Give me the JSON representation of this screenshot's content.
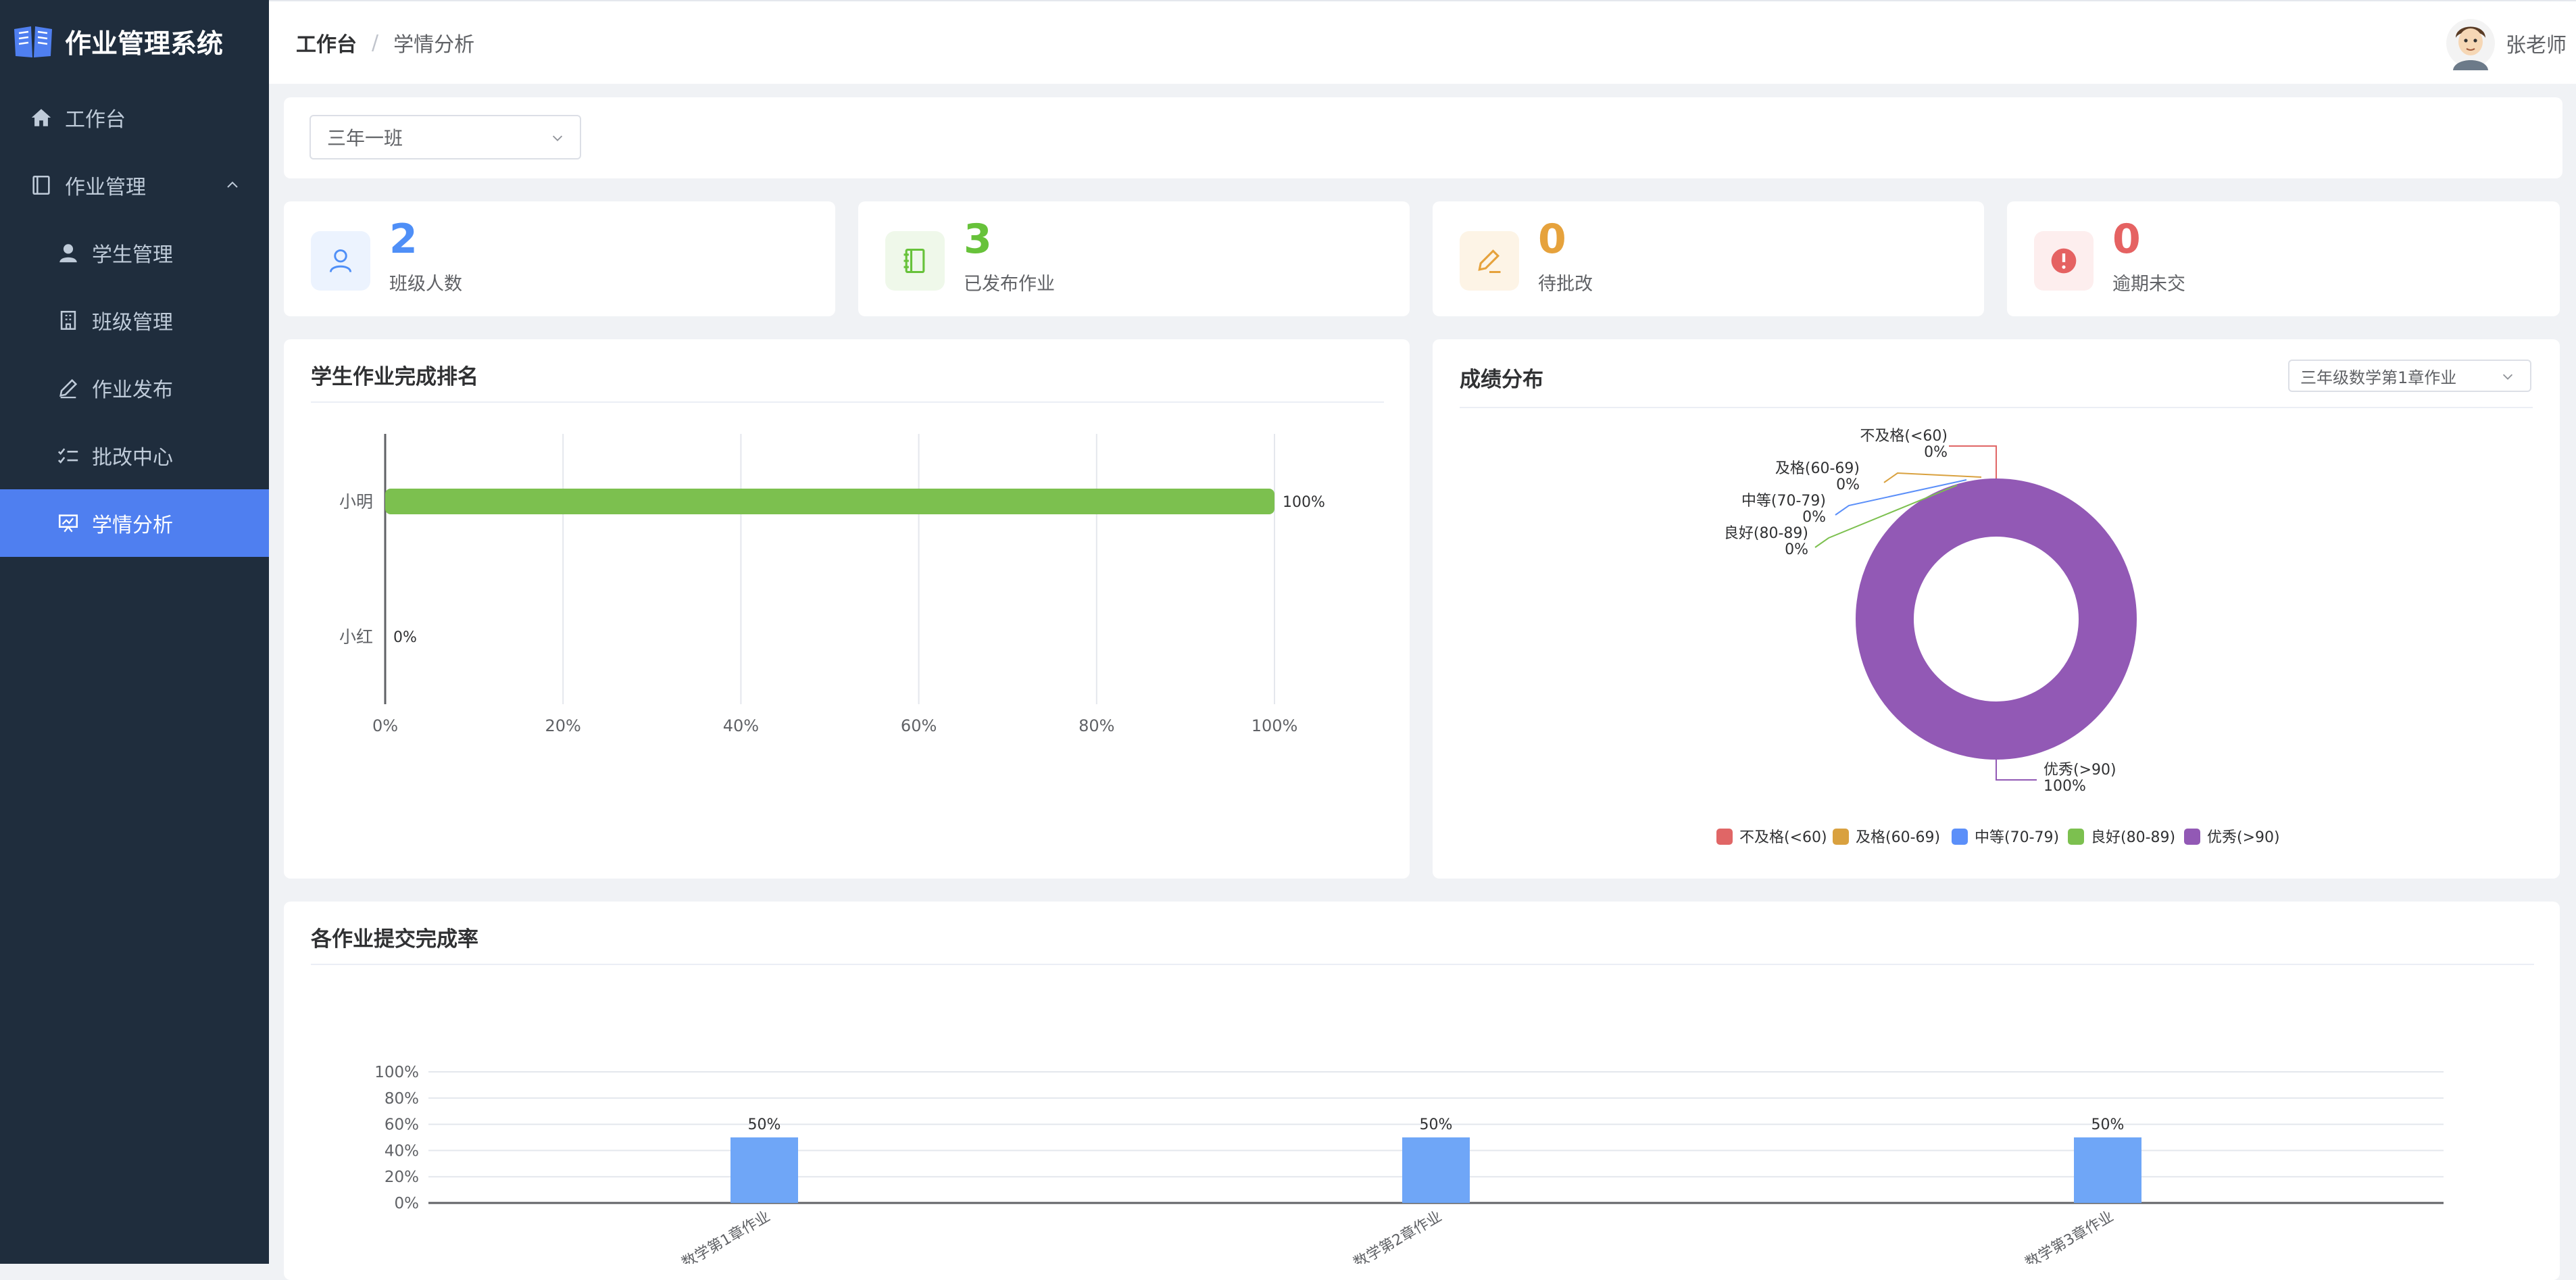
{
  "app": {
    "title": "作业管理系统"
  },
  "sidebar": {
    "items": [
      {
        "label": "工作台",
        "icon": "home-icon"
      },
      {
        "label": "作业管理",
        "icon": "book-icon"
      },
      {
        "label": "学生管理",
        "icon": "user-icon"
      },
      {
        "label": "班级管理",
        "icon": "building-icon"
      },
      {
        "label": "作业发布",
        "icon": "edit-icon"
      },
      {
        "label": "批改中心",
        "icon": "check-list-icon"
      },
      {
        "label": "学情分析",
        "icon": "presentation-icon",
        "active": true
      }
    ]
  },
  "header": {
    "breadcrumb": [
      "工作台",
      "/",
      "学情分析"
    ],
    "user_name": "张老师"
  },
  "filter": {
    "class_value": "三年一班"
  },
  "stats": [
    {
      "value": "2",
      "label": "班级人数",
      "color": "#4f8ff7",
      "bg": "#ecf3fe",
      "icon": "user-icon"
    },
    {
      "value": "3",
      "label": "已发布作业",
      "color": "#67c23a",
      "bg": "#eff8ea",
      "icon": "notebook-icon"
    },
    {
      "value": "0",
      "label": "待批改",
      "color": "#e6a23c",
      "bg": "#fdf4e6",
      "icon": "pen-icon"
    },
    {
      "value": "0",
      "label": "逾期未交",
      "color": "#e56262",
      "bg": "#fdeeee",
      "icon": "alert-icon"
    }
  ],
  "ranking": {
    "title": "学生作业完成排名",
    "chart_data": {
      "type": "bar",
      "orientation": "horizontal",
      "categories": [
        "小明",
        "小红"
      ],
      "values": [
        100,
        0
      ],
      "value_labels": [
        "100%",
        "0%"
      ],
      "x_ticks": [
        "0%",
        "20%",
        "40%",
        "60%",
        "80%",
        "100%"
      ],
      "xlim": [
        0,
        100
      ],
      "color": "#7cc04f"
    }
  },
  "distribution": {
    "title": "成绩分布",
    "select_value": "三年级数学第1章作业",
    "chart_data": {
      "type": "pie",
      "categories": [
        "不及格(<60)",
        "及格(60-69)",
        "中等(70-79)",
        "良好(80-89)",
        "优秀(>90)"
      ],
      "values": [
        0,
        0,
        0,
        0,
        100
      ],
      "value_labels": [
        "0%",
        "0%",
        "0%",
        "0%",
        "100%"
      ],
      "colors": [
        "#e06666",
        "#d9a13f",
        "#5b8ff9",
        "#7cc04f",
        "#9259b5"
      ],
      "legend": "bottom"
    }
  },
  "submission": {
    "title": "各作业提交完成率",
    "chart_data": {
      "type": "bar",
      "categories": [
        "数学第1章作业",
        "数学第2章作业",
        "数学第3章作业"
      ],
      "values": [
        50,
        50,
        50
      ],
      "value_labels": [
        "50%",
        "50%",
        "50%"
      ],
      "y_ticks": [
        "0%",
        "20%",
        "40%",
        "60%",
        "80%",
        "100%"
      ],
      "ylim": [
        0,
        100
      ],
      "color": "#6fa6f7"
    }
  }
}
